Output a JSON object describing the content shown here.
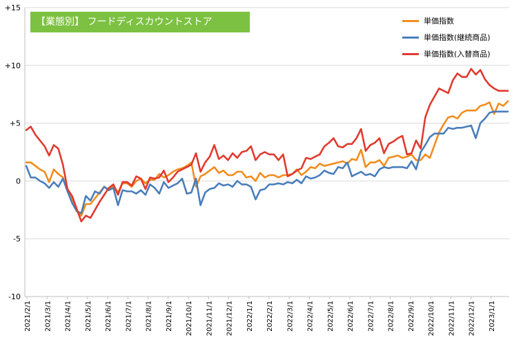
{
  "chart_data": {
    "type": "line",
    "title": "【業態別】 フードディスカウントストア",
    "title_bg": "#7dc142",
    "ylim": [
      -10,
      15
    ],
    "ytick_values": [
      -10,
      -5,
      0,
      5,
      10,
      15
    ],
    "ytick_labels": [
      "-10",
      "-5",
      "0",
      "+5",
      "+10",
      "+15"
    ],
    "xlabels": [
      "2021/2/1",
      "2021/3/1",
      "2021/4/1",
      "2021/5/1",
      "2021/6/1",
      "2021/7/1",
      "2021/8/1",
      "2021/9/1",
      "2021/10/1",
      "2021/11/1",
      "2021/12/1",
      "2022/1/1",
      "2022/2/1",
      "2022/3/1",
      "2022/4/1",
      "2022/5/1",
      "2022/6/1",
      "2022/7/1",
      "2022/8/1",
      "2022/9/1",
      "2022/10/1",
      "2022/11/1",
      "2022/12/1",
      "2023/1/1"
    ],
    "grid": true,
    "legend_position": "top-right",
    "series": [
      {
        "name": "単価指数",
        "color": "#f28c1c",
        "values": [
          1.6,
          1.6,
          1.3,
          1.0,
          0.8,
          -0.1,
          1.0,
          0.6,
          0.3,
          -0.8,
          -1.5,
          -2.6,
          -3.0,
          -2.0,
          -2.0,
          -1.5,
          -1.0,
          -0.5,
          -0.8,
          -0.4,
          -1.0,
          -0.2,
          -0.2,
          -0.5,
          0.0,
          0.2,
          -0.2,
          0.1,
          0.1,
          0.6,
          0.3,
          0.5,
          0.8,
          1.0,
          1.1,
          1.3,
          1.6,
          -0.5,
          0.4,
          0.6,
          0.9,
          1.2,
          0.7,
          0.9,
          0.5,
          0.5,
          0.8,
          0.8,
          0.3,
          0.4,
          0.0,
          0.7,
          0.3,
          0.5,
          0.5,
          0.3,
          0.5,
          0.5,
          0.6,
          1.0,
          0.5,
          0.8,
          1.2,
          1.1,
          1.5,
          1.3,
          1.4,
          1.5,
          1.6,
          1.7,
          1.5,
          1.9,
          1.8,
          2.7,
          1.2,
          1.6,
          1.6,
          1.8,
          1.3,
          2.0,
          2.1,
          2.2,
          2.0,
          2.1,
          2.3,
          1.8,
          1.8,
          2.3,
          2.0,
          3.1,
          4.2,
          4.9,
          5.5,
          5.6,
          5.4,
          5.9,
          6.1,
          6.1,
          6.1,
          6.5,
          6.6,
          6.8,
          5.8,
          6.7,
          6.5,
          6.9
        ]
      },
      {
        "name": "単価指数(継続商品)",
        "color": "#4a7ebb",
        "values": [
          1.3,
          0.3,
          0.3,
          0.0,
          -0.2,
          -0.6,
          -0.1,
          -0.5,
          0.2,
          -0.9,
          -1.9,
          -2.6,
          -2.8,
          -1.3,
          -1.7,
          -0.9,
          -1.1,
          -0.5,
          -0.8,
          -0.6,
          -2.1,
          -0.8,
          -0.9,
          -0.9,
          -1.1,
          -0.8,
          -1.2,
          -0.3,
          -0.6,
          -1.1,
          -0.1,
          -0.6,
          -0.4,
          -0.2,
          0.2,
          -1.1,
          -1.0,
          0.2,
          -2.1,
          -1.0,
          -0.7,
          -0.6,
          -0.2,
          -0.4,
          -0.3,
          -0.5,
          0.0,
          -0.3,
          -0.3,
          -0.5,
          -1.6,
          -0.8,
          -0.7,
          -0.3,
          -0.3,
          -0.2,
          -0.3,
          -0.1,
          -0.2,
          0.1,
          -0.2,
          0.4,
          0.2,
          0.3,
          0.5,
          0.9,
          0.7,
          0.6,
          1.2,
          1.1,
          1.6,
          0.4,
          0.6,
          0.8,
          0.5,
          0.6,
          0.4,
          1.0,
          1.2,
          1.1,
          1.2,
          1.2,
          1.2,
          1.1,
          1.7,
          1.0,
          2.5,
          3.1,
          3.8,
          4.1,
          4.1,
          4.1,
          4.6,
          4.5,
          4.6,
          4.6,
          4.7,
          4.8,
          3.7,
          5.0,
          5.4,
          5.9,
          6.0,
          6.0,
          6.0,
          6.0
        ]
      },
      {
        "name": "単価指数(入替商品)",
        "color": "#e03a2f",
        "values": [
          4.4,
          4.7,
          4.0,
          3.5,
          3.0,
          2.2,
          3.1,
          2.8,
          1.4,
          -0.7,
          -1.3,
          -2.4,
          -3.5,
          -3.0,
          -3.2,
          -2.5,
          -1.8,
          -1.2,
          -0.6,
          -0.3,
          -1.2,
          -0.1,
          -0.1,
          -0.4,
          0.4,
          0.2,
          -0.7,
          0.3,
          0.2,
          0.3,
          0.9,
          -0.1,
          0.3,
          0.8,
          1.0,
          1.2,
          1.4,
          2.4,
          0.8,
          1.6,
          2.1,
          3.1,
          1.9,
          2.2,
          1.8,
          2.4,
          2.0,
          2.5,
          2.6,
          3.0,
          1.8,
          2.3,
          2.5,
          2.3,
          2.3,
          1.8,
          2.3,
          0.4,
          0.6,
          0.9,
          1.1,
          2.0,
          1.9,
          2.1,
          2.3,
          3.0,
          3.3,
          3.7,
          3.0,
          2.9,
          3.2,
          3.2,
          3.7,
          4.5,
          2.6,
          3.1,
          3.3,
          3.7,
          2.4,
          3.2,
          3.4,
          3.7,
          3.9,
          2.3,
          2.4,
          3.5,
          2.8,
          5.5,
          6.6,
          7.3,
          8.0,
          7.8,
          7.6,
          8.7,
          9.3,
          9.0,
          9.0,
          9.7,
          9.2,
          9.6,
          8.8,
          8.3,
          8.0,
          7.8,
          7.8,
          7.8
        ]
      }
    ]
  }
}
